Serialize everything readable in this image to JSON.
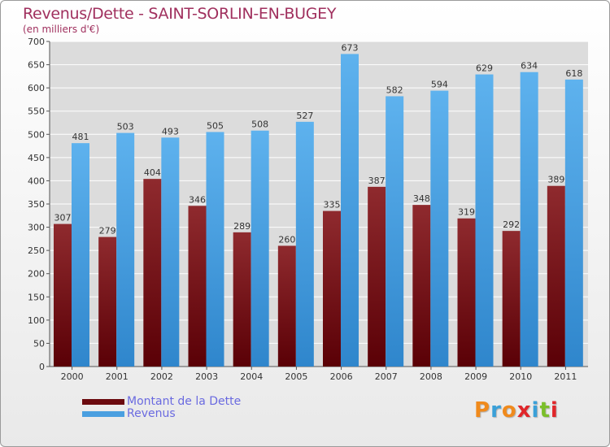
{
  "header": {
    "title": "Revenus/Dette - SAINT-SORLIN-EN-BUGEY",
    "subtitle": "(en milliers d'€)"
  },
  "legend": {
    "items": [
      {
        "label": "Montant de la Dette",
        "color": "#6b0a0e"
      },
      {
        "label": "Revenus",
        "color": "#4a9fe0"
      }
    ]
  },
  "logo": {
    "text": "Proxiti",
    "colors": [
      "#f08a1c",
      "#3aa0d8",
      "#f08a1c",
      "#e0262a",
      "#3aa0d8",
      "#7bbf2a",
      "#e0262a"
    ]
  },
  "chart_data": {
    "type": "bar",
    "categories": [
      "2000",
      "2001",
      "2002",
      "2003",
      "2004",
      "2005",
      "2006",
      "2007",
      "2008",
      "2009",
      "2010",
      "2011"
    ],
    "series": [
      {
        "name": "Montant de la Dette",
        "values": [
          307,
          279,
          404,
          346,
          289,
          260,
          335,
          387,
          348,
          319,
          292,
          389
        ],
        "color": "#6b0a0e"
      },
      {
        "name": "Revenus",
        "values": [
          481,
          503,
          493,
          505,
          508,
          527,
          673,
          582,
          594,
          629,
          634,
          618
        ],
        "color": "#4a9fe0"
      }
    ],
    "title": "Revenus/Dette - SAINT-SORLIN-EN-BUGEY",
    "ylim": [
      0,
      700
    ],
    "yticks": [
      0,
      50,
      100,
      150,
      200,
      250,
      300,
      350,
      400,
      450,
      500,
      550,
      600,
      650,
      700
    ],
    "grid": true
  }
}
